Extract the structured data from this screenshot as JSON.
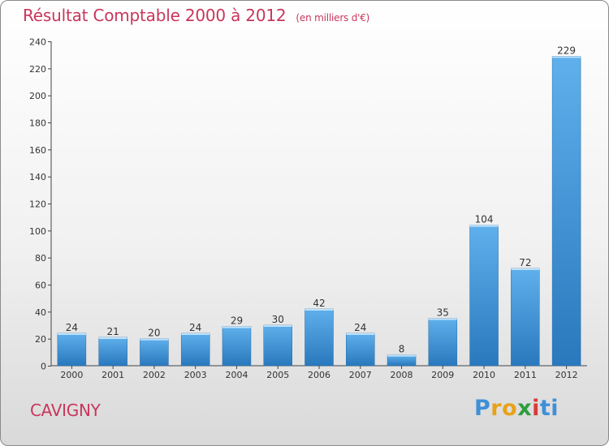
{
  "chart_data": {
    "type": "bar",
    "title": "Résultat Comptable 2000 à 2012",
    "unit_label": "(en milliers d'€)",
    "categories": [
      "2000",
      "2001",
      "2002",
      "2003",
      "2004",
      "2005",
      "2006",
      "2007",
      "2008",
      "2009",
      "2010",
      "2011",
      "2012"
    ],
    "values": [
      24,
      21,
      20,
      24,
      29,
      30,
      42,
      24,
      8,
      35,
      104,
      72,
      229
    ],
    "ylim": [
      0,
      240
    ],
    "yticks": [
      0,
      20,
      40,
      60,
      80,
      100,
      120,
      140,
      160,
      180,
      200,
      220,
      240
    ],
    "xlabel": "",
    "ylabel": "",
    "grid": false
  },
  "footer": {
    "place": "CAVIGNY",
    "logo_letters": [
      "P",
      "r",
      "o",
      "x",
      "i",
      "t",
      "i"
    ],
    "logo_colors": [
      "#3e8fd6",
      "#e8a21a",
      "#e8a21a",
      "#2e9e3e",
      "#d83a3a",
      "#3e8fd6",
      "#3e8fd6"
    ]
  },
  "colors": {
    "bar_top": "#5fb0ec",
    "bar_bottom": "#2a78bd",
    "title": "#c8365c",
    "axis": "#444444"
  }
}
